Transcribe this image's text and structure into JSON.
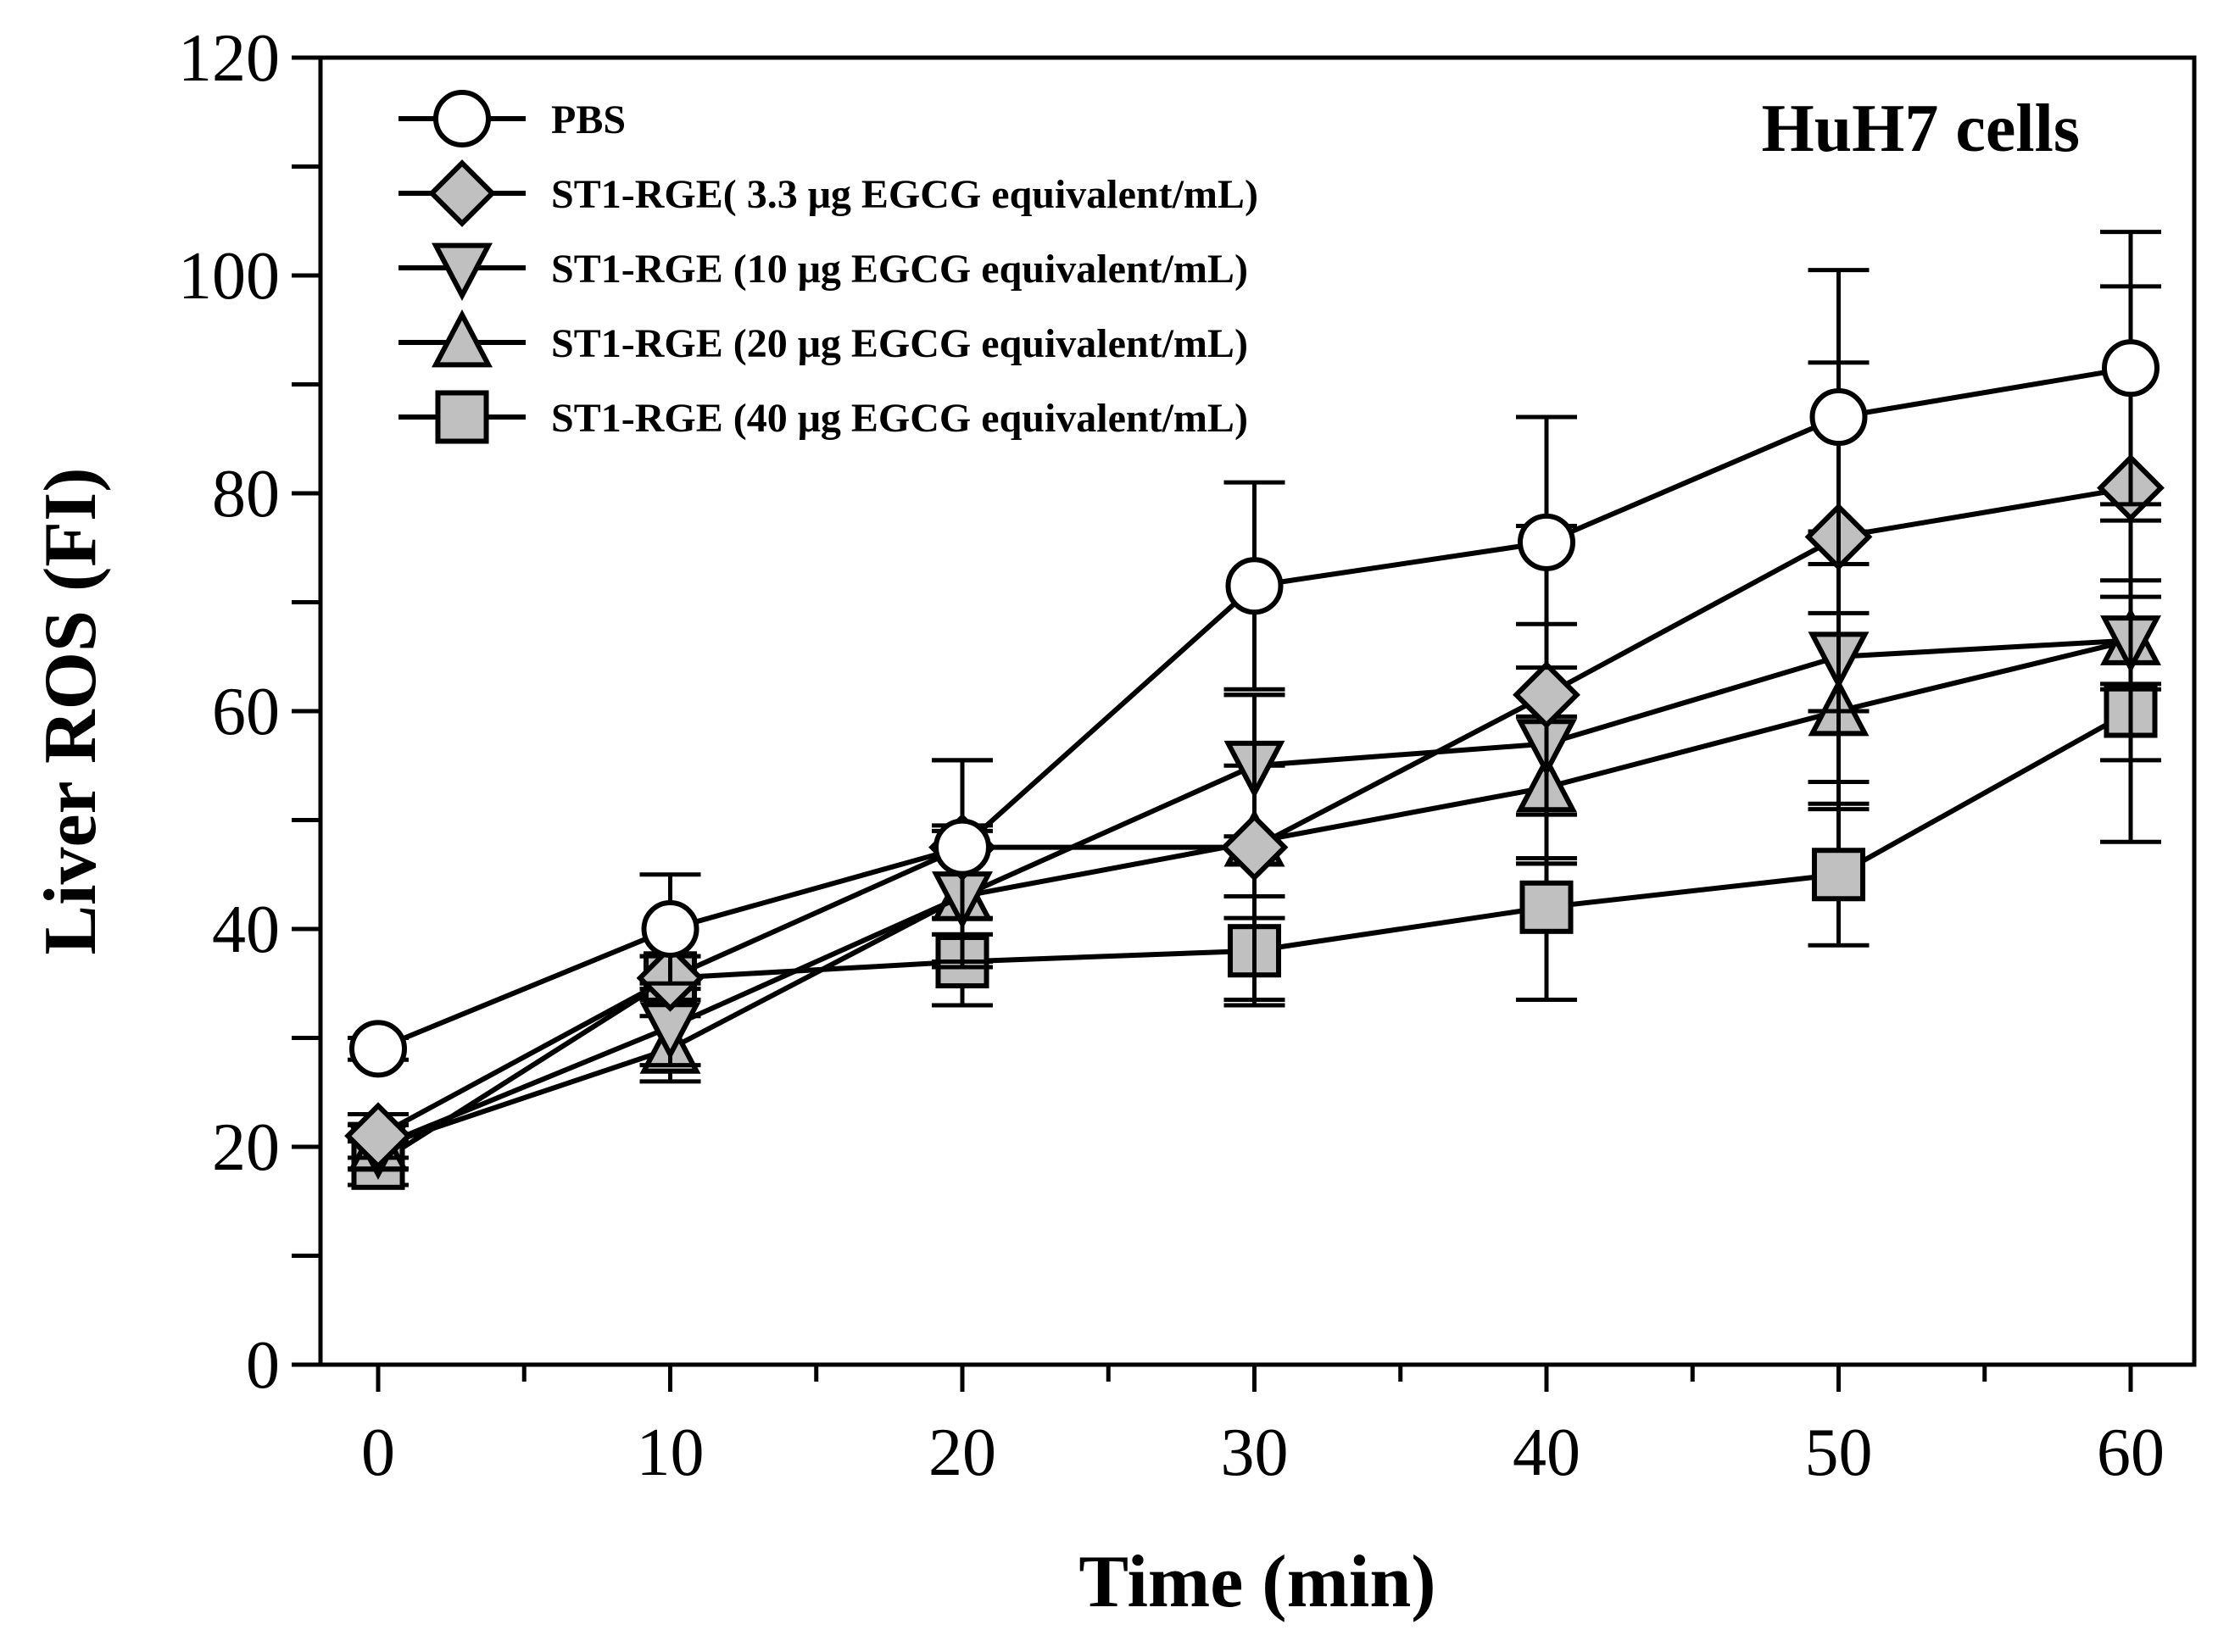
{
  "chart_data": {
    "type": "line",
    "annotation": "HuH7 cells",
    "xlabel": "Time (min)",
    "ylabel": "Liver ROS (FI)",
    "xlim": [
      -3,
      62
    ],
    "ylim": [
      0,
      120
    ],
    "x_ticks": [
      0,
      10,
      20,
      30,
      40,
      50,
      60
    ],
    "y_ticks": [
      0,
      20,
      40,
      60,
      80,
      100,
      120
    ],
    "x_minor_ticks": [
      5,
      15,
      25,
      35,
      45,
      55
    ],
    "y_minor_ticks": [
      10,
      30,
      50,
      70,
      90,
      110
    ],
    "grid": false,
    "legend_position": "top-left",
    "x": [
      0,
      10,
      20,
      30,
      40,
      50,
      60
    ],
    "series": [
      {
        "name": "PBS",
        "marker": "circle",
        "fill": "#ffffff",
        "values": [
          29,
          40,
          47.5,
          71.5,
          75.5,
          87,
          91.5
        ],
        "errors": [
          1,
          5,
          8,
          9.5,
          11.5,
          13.5,
          12.5
        ]
      },
      {
        "name": "ST1-RGE( 3.3 μg EGCG equivalent/mL)",
        "marker": "diamond",
        "fill": "#c0c0c0",
        "values": [
          21,
          35.5,
          47.5,
          47.5,
          61.5,
          76,
          80.5
        ],
        "errors": [
          2,
          2,
          8,
          14,
          15.5,
          16,
          18.5
        ]
      },
      {
        "name": "ST1-RGE (10 μg EGCG equivalent/mL)",
        "marker": "triangle-down",
        "fill": "#c0c0c0",
        "values": [
          20,
          31,
          43,
          55,
          57,
          65,
          66.5
        ],
        "errors": [
          2,
          3.5,
          6.5,
          6.5,
          11,
          11.5,
          11
        ]
      },
      {
        "name": "ST1-RGE (20 μg EGCG equivalent/mL)",
        "marker": "triangle-up",
        "fill": "#c0c0c0",
        "values": [
          20,
          29,
          43,
          48,
          53,
          60,
          66.5
        ],
        "errors": [
          2,
          3,
          6,
          7,
          6.5,
          9,
          4
        ]
      },
      {
        "name": "ST1-RGE (40 μg EGCG equivalent/mL)",
        "marker": "square",
        "fill": "#c0c0c0",
        "values": [
          18.5,
          35.5,
          37,
          38,
          42,
          45,
          60
        ],
        "errors": [
          2,
          2,
          4,
          5,
          8.5,
          6.5,
          12
        ]
      }
    ]
  }
}
